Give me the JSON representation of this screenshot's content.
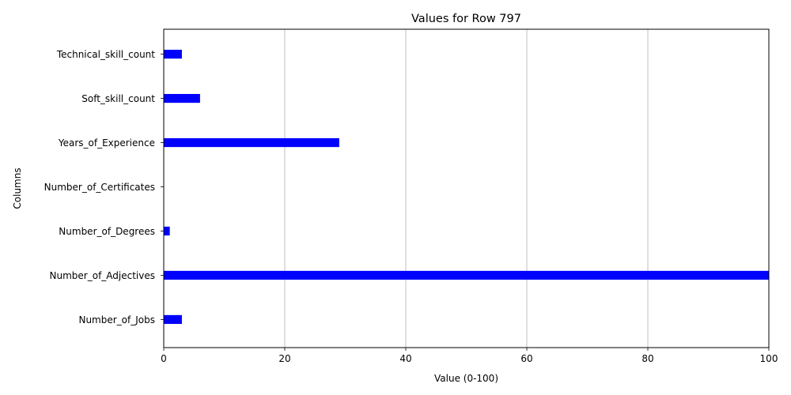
{
  "chart_data": {
    "type": "bar",
    "orientation": "horizontal",
    "title": "Values for Row 797",
    "xlabel": "Value (0-100)",
    "ylabel": "Columns",
    "xlim": [
      0,
      100
    ],
    "xticks": [
      "0",
      "20",
      "40",
      "60",
      "80",
      "100"
    ],
    "grid": "vertical",
    "bar_color": "#0000ff",
    "categories": [
      "Number_of_Jobs",
      "Number_of_Adjectives",
      "Number_of_Degrees",
      "Number_of_Certificates",
      "Years_of_Experience",
      "Soft_skill_count",
      "Technical_skill_count"
    ],
    "values": [
      3,
      100,
      1,
      0,
      29,
      6,
      3
    ]
  }
}
